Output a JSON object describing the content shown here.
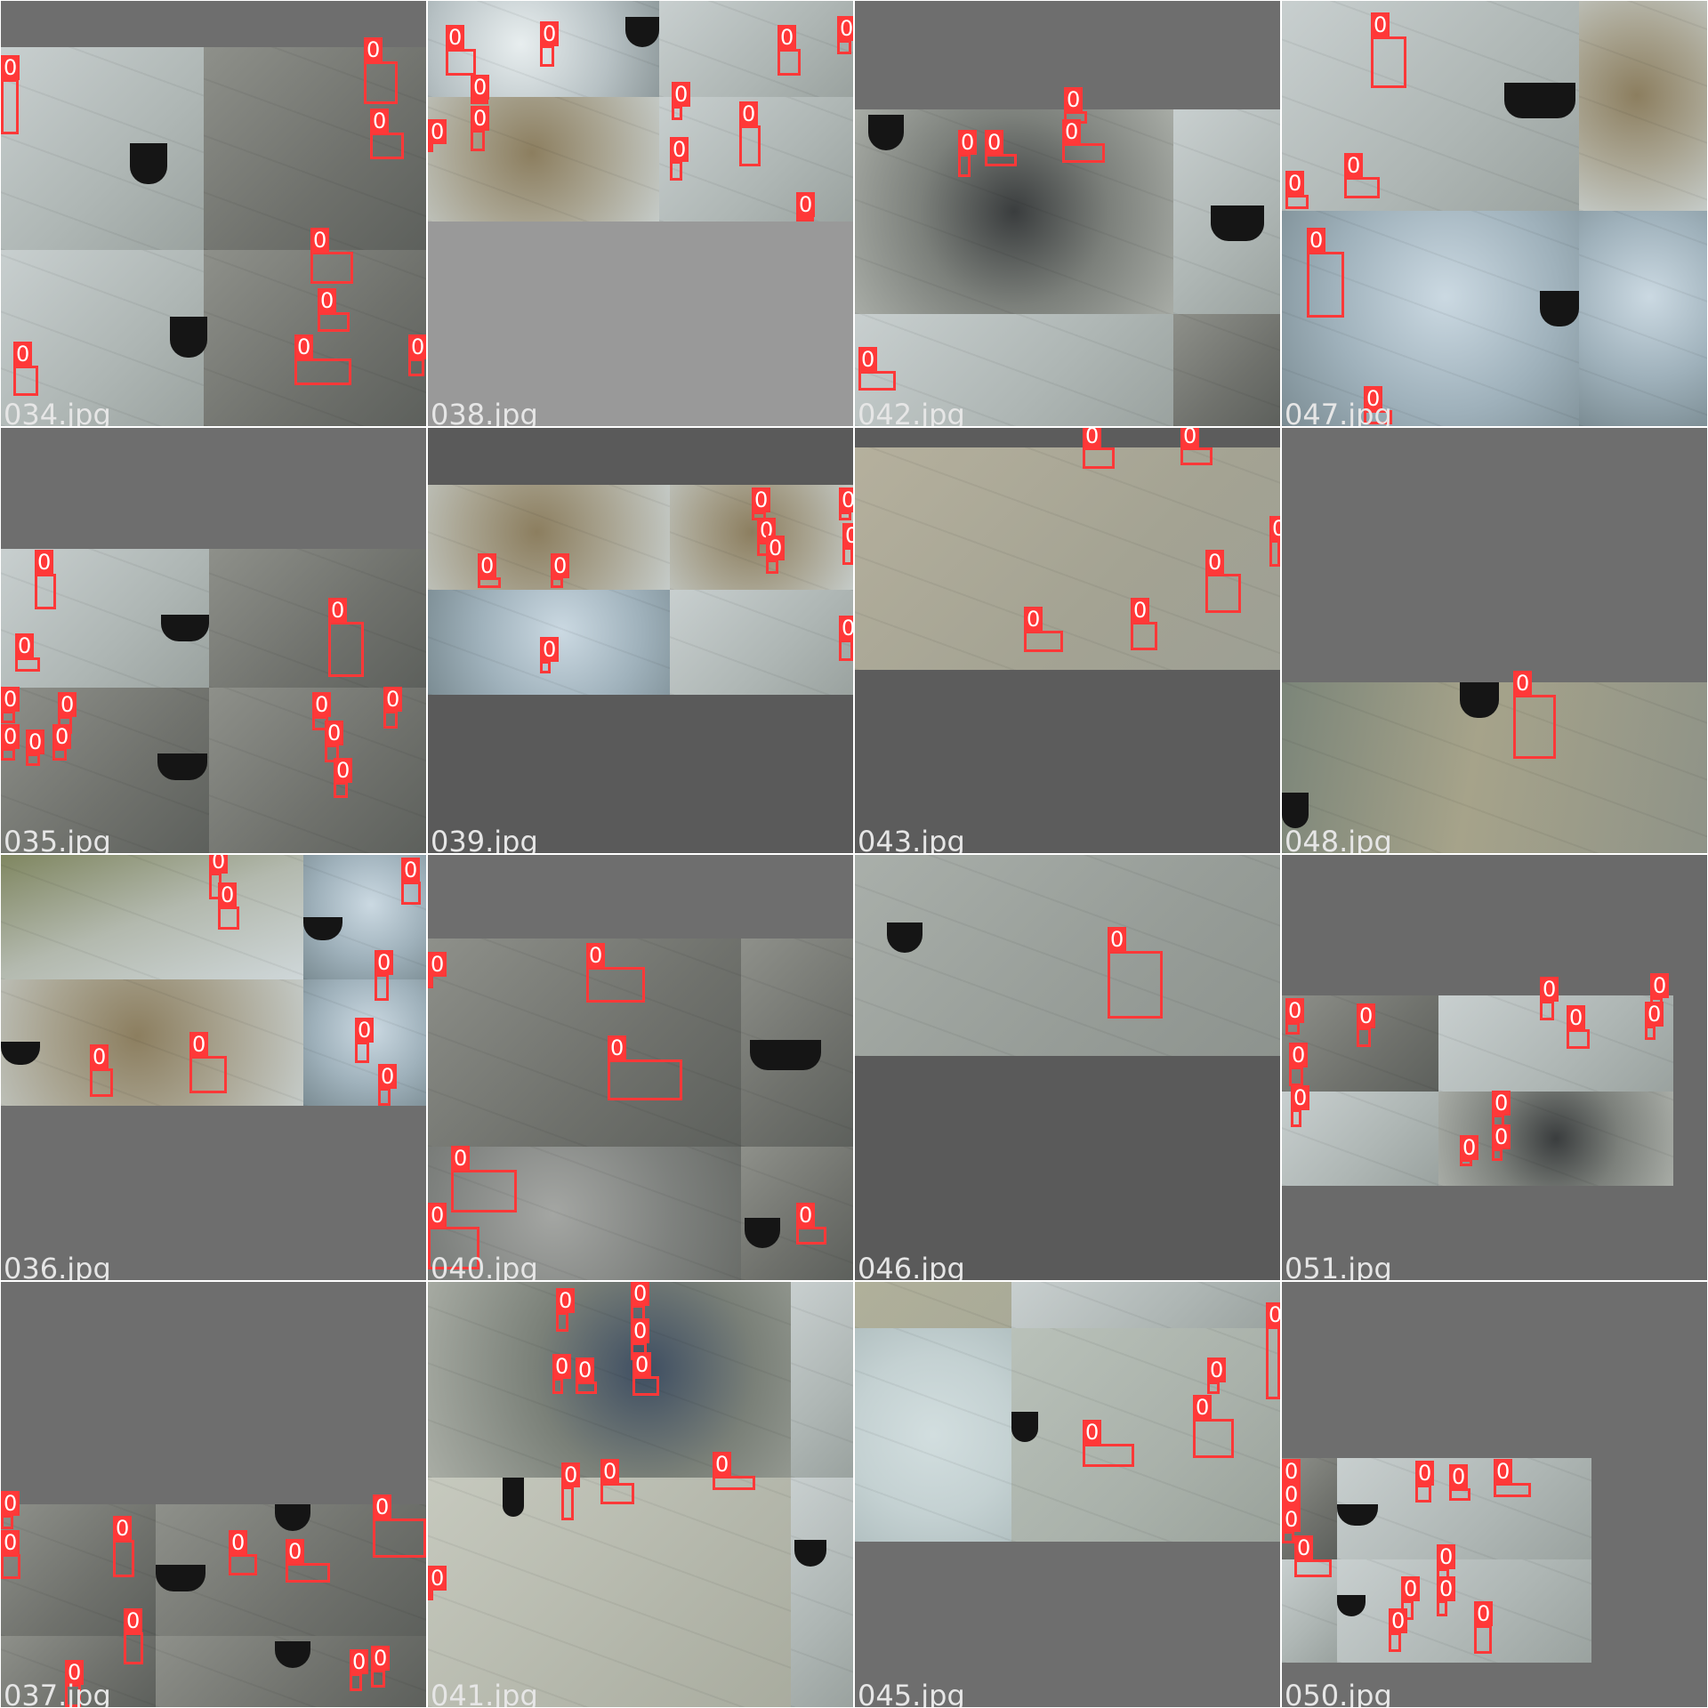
{
  "label_text": "0",
  "box_color": "#ff3838",
  "tiles": [
    {
      "filename": "034.jpg"
    },
    {
      "filename": "038.jpg"
    },
    {
      "filename": "042.jpg"
    },
    {
      "filename": "047.jpg"
    },
    {
      "filename": "035.jpg"
    },
    {
      "filename": "039.jpg"
    },
    {
      "filename": "043.jpg"
    },
    {
      "filename": "048.jpg"
    },
    {
      "filename": "036.jpg"
    },
    {
      "filename": "040.jpg"
    },
    {
      "filename": "046.jpg"
    },
    {
      "filename": "051.jpg"
    },
    {
      "filename": "037.jpg"
    },
    {
      "filename": "041.jpg"
    },
    {
      "filename": "045.jpg"
    },
    {
      "filename": "050.jpg"
    }
  ]
}
